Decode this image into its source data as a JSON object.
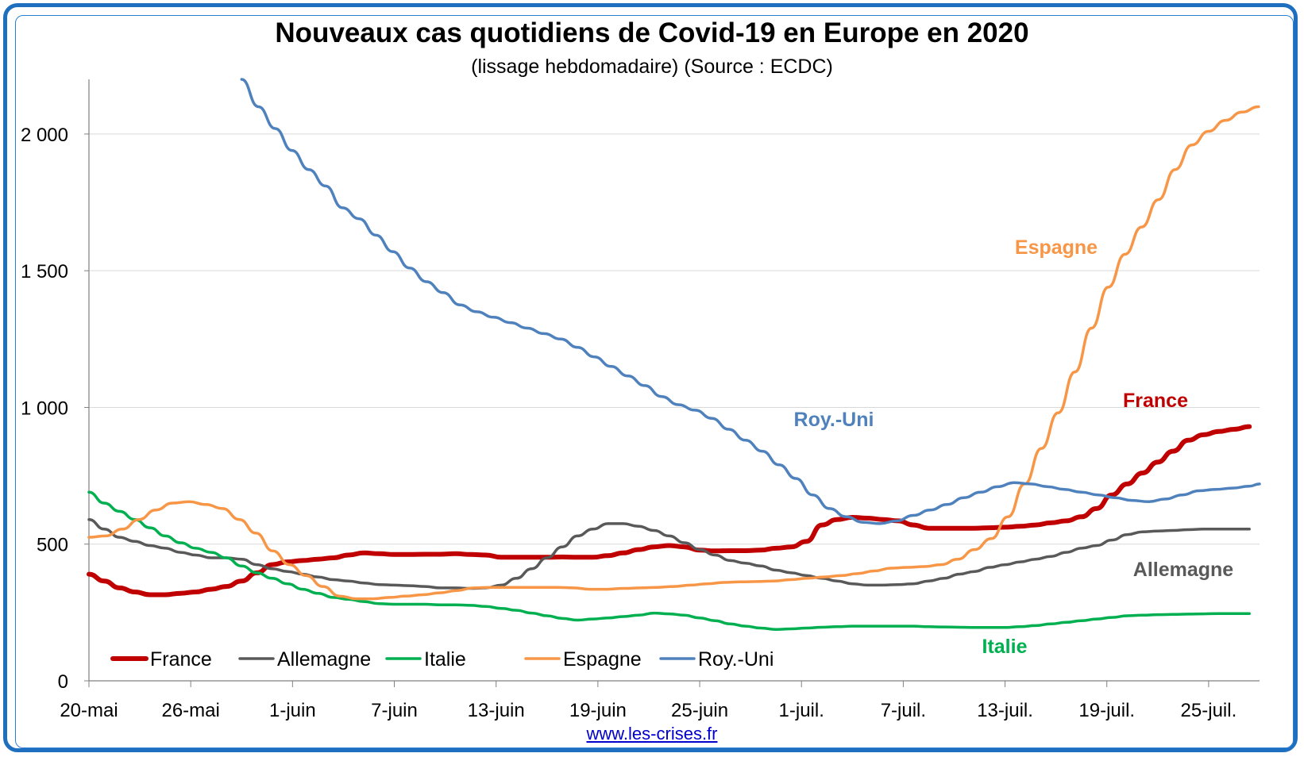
{
  "title": "Nouveaux cas quotidiens de Covid-19 en Europe en 2020",
  "subtitle": "(lissage hebdomadaire) (Source : ECDC)",
  "source_link": "www.les-crises.fr",
  "chart_data": {
    "type": "line",
    "title": "Nouveaux cas quotidiens de Covid-19 en Europe en 2020",
    "subtitle": "(lissage hebdomadaire) (Source : ECDC)",
    "xlabel": "",
    "ylabel": "",
    "ylim": [
      0,
      2200
    ],
    "yticks": [
      0,
      500,
      1000,
      1500,
      2000
    ],
    "ytick_labels": [
      "0",
      "500",
      "1 000",
      "1 500",
      "2 000"
    ],
    "xlim_days": [
      0,
      69
    ],
    "xticks": [
      "20-mai",
      "26-mai",
      "1-juin",
      "7-juin",
      "13-juin",
      "19-juin",
      "25-juin",
      "1-juil.",
      "7-juil.",
      "13-juil.",
      "19-juil.",
      "25-juil."
    ],
    "grid": true,
    "legend_position": "bottom-left",
    "series": [
      {
        "name": "France",
        "color": "#c00000",
        "values": [
          390,
          365,
          340,
          325,
          315,
          315,
          320,
          325,
          335,
          345,
          365,
          395,
          425,
          435,
          440,
          445,
          450,
          460,
          468,
          465,
          462,
          462,
          463,
          463,
          465,
          462,
          460,
          452,
          452,
          452,
          452,
          453,
          452,
          452,
          458,
          468,
          480,
          490,
          495,
          490,
          478,
          475,
          476,
          476,
          478,
          485,
          490,
          510,
          570,
          590,
          598,
          595,
          590,
          585,
          570,
          558,
          558,
          558,
          558,
          560,
          562,
          565,
          570,
          578,
          585,
          600,
          630,
          680,
          720,
          760,
          800,
          840,
          880,
          900,
          912,
          920,
          930
        ]
      },
      {
        "name": "Allemagne",
        "color": "#595959",
        "values": [
          590,
          555,
          525,
          510,
          495,
          485,
          470,
          460,
          450,
          450,
          445,
          425,
          410,
          400,
          390,
          380,
          370,
          365,
          358,
          352,
          350,
          348,
          345,
          340,
          340,
          338,
          340,
          350,
          375,
          410,
          450,
          490,
          530,
          555,
          575,
          575,
          565,
          550,
          530,
          505,
          480,
          460,
          440,
          430,
          420,
          405,
          395,
          385,
          375,
          365,
          355,
          350,
          350,
          352,
          355,
          365,
          375,
          390,
          400,
          415,
          425,
          435,
          445,
          455,
          470,
          485,
          495,
          515,
          535,
          545,
          548,
          550,
          553,
          555,
          555,
          555,
          555
        ]
      },
      {
        "name": "Italie",
        "color": "#00b050",
        "values": [
          690,
          650,
          620,
          590,
          560,
          530,
          505,
          485,
          470,
          450,
          420,
          395,
          375,
          355,
          335,
          320,
          305,
          298,
          290,
          282,
          280,
          280,
          280,
          278,
          278,
          276,
          272,
          265,
          258,
          248,
          238,
          228,
          222,
          226,
          230,
          235,
          240,
          248,
          245,
          240,
          230,
          220,
          208,
          200,
          193,
          188,
          190,
          193,
          196,
          198,
          200,
          200,
          200,
          200,
          200,
          198,
          197,
          196,
          195,
          195,
          195,
          198,
          202,
          208,
          214,
          220,
          226,
          232,
          238,
          240,
          242,
          243,
          244,
          245,
          246,
          246,
          246
        ]
      },
      {
        "name": "Espagne",
        "color": "#f79646",
        "values": [
          525,
          530,
          555,
          590,
          625,
          650,
          655,
          645,
          630,
          590,
          540,
          475,
          425,
          385,
          345,
          310,
          300,
          300,
          305,
          310,
          315,
          322,
          330,
          340,
          342,
          342,
          342,
          342,
          342,
          340,
          335,
          335,
          338,
          340,
          342,
          345,
          350,
          355,
          360,
          362,
          363,
          365,
          370,
          375,
          380,
          385,
          392,
          402,
          412,
          415,
          418,
          425,
          445,
          480,
          520,
          600,
          720,
          850,
          980,
          1130,
          1290,
          1440,
          1560,
          1660,
          1760,
          1870,
          1960,
          2010,
          2050,
          2080,
          2100
        ]
      },
      {
        "name": "Roy.-Uni",
        "color": "#4f81bd",
        "values": [
          2200,
          2100,
          2020,
          1940,
          1870,
          1810,
          1730,
          1690,
          1630,
          1570,
          1510,
          1460,
          1420,
          1375,
          1350,
          1330,
          1310,
          1290,
          1270,
          1250,
          1220,
          1185,
          1150,
          1115,
          1080,
          1040,
          1010,
          990,
          960,
          920,
          880,
          840,
          790,
          740,
          680,
          630,
          600,
          580,
          575,
          585,
          605,
          625,
          645,
          670,
          690,
          710,
          725,
          720,
          710,
          700,
          690,
          680,
          670,
          660,
          655,
          665,
          680,
          695,
          700,
          705,
          712,
          720
        ]
      }
    ],
    "series_start_day": [
      0,
      0,
      0,
      0,
      9
    ],
    "series_step_day": [
      0.9,
      0.9,
      0.9,
      0.985,
      0.99
    ],
    "annotations": [
      {
        "text": "Espagne",
        "series": "Espagne"
      },
      {
        "text": "France",
        "series": "France"
      },
      {
        "text": "Roy.-Uni",
        "series": "Roy.-Uni"
      },
      {
        "text": "Allemagne",
        "series": "Allemagne"
      },
      {
        "text": "Italie",
        "series": "Italie"
      }
    ]
  }
}
